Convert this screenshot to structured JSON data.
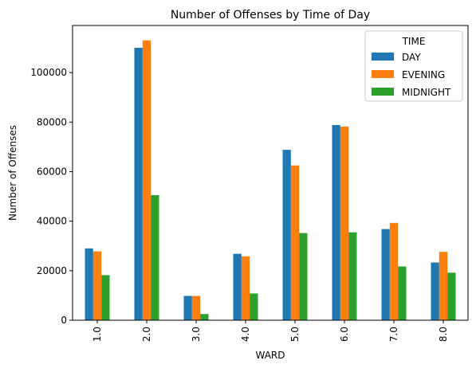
{
  "chart_data": {
    "type": "bar",
    "title": "Number of Offenses by Time of Day",
    "xlabel": "WARD",
    "ylabel": "Number of Offenses",
    "categories": [
      "1.0",
      "2.0",
      "3.0",
      "4.0",
      "5.0",
      "6.0",
      "7.0",
      "8.0"
    ],
    "ylim": [
      0,
      119000
    ],
    "yticks": [
      0,
      20000,
      40000,
      60000,
      80000,
      100000
    ],
    "legend": {
      "title": "TIME",
      "placement": "top-right"
    },
    "grid": false,
    "series": [
      {
        "name": "DAY",
        "color": "#1f77b4",
        "values": [
          29000,
          110000,
          9800,
          26800,
          68800,
          78800,
          36800,
          23300
        ]
      },
      {
        "name": "EVENING",
        "color": "#ff7f0e",
        "values": [
          27800,
          113000,
          9800,
          25800,
          62500,
          78200,
          39300,
          27600
        ]
      },
      {
        "name": "MIDNIGHT",
        "color": "#2ca02c",
        "values": [
          18200,
          50500,
          2500,
          10800,
          35200,
          35500,
          21700,
          19200
        ]
      }
    ]
  }
}
